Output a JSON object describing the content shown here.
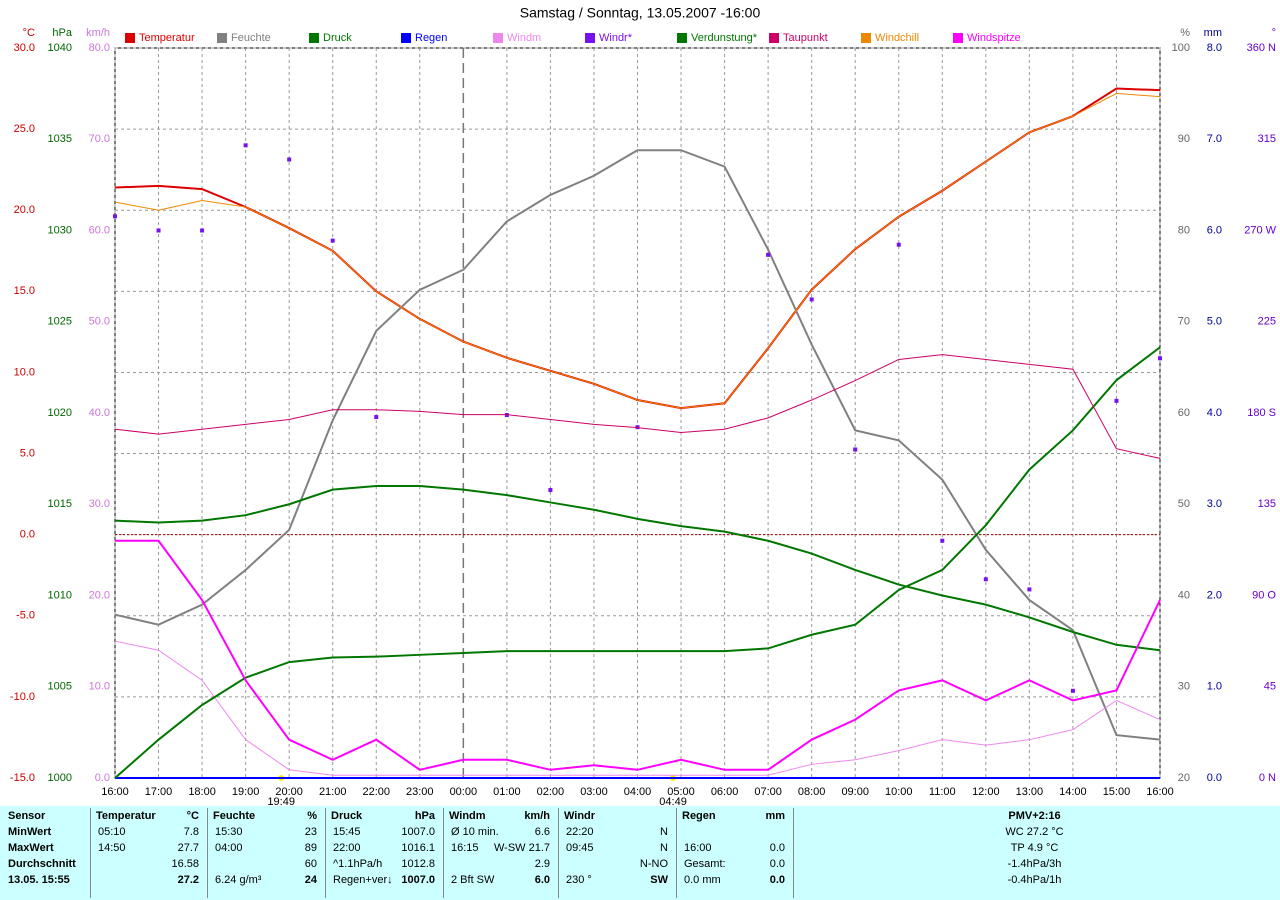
{
  "chart_data": {
    "type": "line",
    "title": "Samstag / Sonntag, 13.05.2007  -16:00",
    "grid": true,
    "zero_line": true,
    "categories": [
      "16:00",
      "17:00",
      "18:00",
      "19:00",
      "20:00",
      "21:00",
      "22:00",
      "23:00",
      "00:00",
      "01:00",
      "02:00",
      "03:00",
      "04:00",
      "05:00",
      "06:00",
      "07:00",
      "08:00",
      "09:00",
      "10:00",
      "11:00",
      "12:00",
      "13:00",
      "14:00",
      "15:00",
      "16:00"
    ],
    "markers": [
      {
        "label": "19:49",
        "color": "#ffee00"
      },
      {
        "label": "04:49",
        "color": "#ffee00"
      }
    ],
    "axes": [
      {
        "unit": "°C",
        "side": "left",
        "color": "#cc0000",
        "lim": [
          -15,
          30
        ],
        "ticks": [
          {
            "value": 30,
            "label": "30.0"
          },
          {
            "value": 25,
            "label": "25.0"
          },
          {
            "value": 20,
            "label": "20.0"
          },
          {
            "value": 15,
            "label": "15.0"
          },
          {
            "value": 10,
            "label": "10.0"
          },
          {
            "value": 5,
            "label": "5.0"
          },
          {
            "value": 0,
            "label": "0.0"
          },
          {
            "value": -5,
            "label": "-5.0"
          },
          {
            "value": -10,
            "label": "-10.0"
          },
          {
            "value": -15,
            "label": "-15.0"
          }
        ]
      },
      {
        "unit": "hPa",
        "side": "left",
        "color": "#006600",
        "lim": [
          1000,
          1040
        ],
        "ticks": [
          1040,
          1035,
          1030,
          1025,
          1020,
          1015,
          1010,
          1005,
          1000
        ]
      },
      {
        "unit": "km/h",
        "side": "left",
        "color": "#cc77dd",
        "lim": [
          0,
          80
        ],
        "ticks": [
          {
            "value": 80,
            "label": "80.0"
          },
          {
            "value": 70,
            "label": "70.0"
          },
          {
            "value": 60,
            "label": "60.0"
          },
          {
            "value": 50,
            "label": "50.0"
          },
          {
            "value": 40,
            "label": "40.0"
          },
          {
            "value": 30,
            "label": "30.0"
          },
          {
            "value": 20,
            "label": "20.0"
          },
          {
            "value": 10,
            "label": "10.0"
          },
          {
            "value": 0,
            "label": "0.0"
          }
        ]
      },
      {
        "unit": "%",
        "side": "right",
        "color": "#666666",
        "lim": [
          20,
          100
        ],
        "ticks": [
          100,
          90,
          80,
          70,
          60,
          50,
          40,
          30,
          20
        ]
      },
      {
        "unit": "mm",
        "side": "right",
        "color": "#000099",
        "lim": [
          0,
          8
        ],
        "ticks": [
          {
            "value": 8,
            "label": "8.0"
          },
          {
            "value": 7,
            "label": "7.0"
          },
          {
            "value": 6,
            "label": "6.0"
          },
          {
            "value": 5,
            "label": "5.0"
          },
          {
            "value": 4,
            "label": "4.0"
          },
          {
            "value": 3,
            "label": "3.0"
          },
          {
            "value": 2,
            "label": "2.0"
          },
          {
            "value": 1,
            "label": "1.0"
          },
          {
            "value": 0,
            "label": "0.0"
          }
        ]
      },
      {
        "unit": "°",
        "side": "right",
        "color": "#6600cc",
        "lim": [
          0,
          360
        ],
        "ticks": [
          {
            "value": 360,
            "label": "360 N"
          },
          315,
          {
            "value": 270,
            "label": "270 W"
          },
          225,
          {
            "value": 180,
            "label": "180 S"
          },
          135,
          {
            "value": 90,
            "label": "90 O"
          },
          45,
          {
            "value": 0,
            "label": "0 N"
          }
        ]
      }
    ],
    "series": [
      {
        "name": "Temperatur",
        "color": "#dd0000",
        "axis": 0,
        "width": 2,
        "values": [
          21.4,
          21.5,
          21.3,
          20.2,
          18.9,
          17.5,
          15.0,
          13.3,
          11.9,
          10.9,
          10.1,
          9.3,
          8.3,
          7.8,
          8.1,
          11.5,
          15.1,
          17.6,
          19.6,
          21.2,
          23.0,
          24.8,
          25.8,
          27.5,
          27.4
        ]
      },
      {
        "name": "Feuchte",
        "color": "#808080",
        "axis": 3,
        "width": 2,
        "values": [
          37.9,
          36.8,
          39,
          42.8,
          47.2,
          59.2,
          69,
          73.5,
          75.7,
          81,
          83.9,
          86,
          88.8,
          88.8,
          87,
          77.9,
          67.5,
          58.1,
          57,
          52.7,
          45,
          39.5,
          36.2,
          24.7,
          24.2
        ]
      },
      {
        "name": "Druck",
        "color": "#007700",
        "axis": 1,
        "width": 2,
        "values": [
          1014.1,
          1014,
          1014.1,
          1014.4,
          1015,
          1015.8,
          1016,
          1016,
          1015.8,
          1015.5,
          1015.1,
          1014.7,
          1014.2,
          1013.8,
          1013.5,
          1013,
          1012.3,
          1011.4,
          1010.6,
          1010,
          1009.5,
          1008.8,
          1008,
          1007.3,
          1007
        ]
      },
      {
        "name": "Regen",
        "color": "#0000ff",
        "axis": 4,
        "width": 2,
        "values": [
          0,
          0,
          0,
          0,
          0,
          0,
          0,
          0,
          0,
          0,
          0,
          0,
          0,
          0,
          0,
          0,
          0,
          0,
          0,
          0,
          0,
          0,
          0,
          0,
          0
        ]
      },
      {
        "name": "Windm",
        "color": "#ee88ee",
        "axis": 2,
        "width": 1,
        "values": [
          15,
          14,
          10.7,
          4.2,
          0.9,
          0.3,
          0.3,
          0.3,
          0.3,
          0.3,
          0.3,
          0.3,
          0.3,
          0.3,
          0.3,
          0.3,
          1.5,
          2,
          3,
          4.2,
          3.6,
          4.2,
          5.3,
          8.5,
          6.4
        ]
      },
      {
        "name": "Windr*",
        "color": "#7711ee",
        "axis": 5,
        "style": "dots",
        "values": [
          277,
          270,
          270,
          312,
          305,
          265,
          178,
          null,
          null,
          179,
          142,
          null,
          173,
          null,
          null,
          258,
          236,
          162,
          263,
          117,
          98,
          93,
          43,
          186,
          207
        ]
      },
      {
        "name": "Verdunstung*",
        "color": "#007700",
        "axis": 4,
        "width": 2,
        "values": [
          0,
          0.42,
          0.8,
          1.1,
          1.27,
          1.32,
          1.33,
          1.35,
          1.37,
          1.39,
          1.39,
          1.39,
          1.39,
          1.39,
          1.39,
          1.42,
          1.57,
          1.68,
          2.06,
          2.28,
          2.77,
          3.38,
          3.81,
          4.36,
          4.72
        ]
      },
      {
        "name": "Taupunkt",
        "color": "#cc0066",
        "axis": 0,
        "width": 1,
        "values": [
          6.5,
          6.2,
          6.5,
          6.8,
          7.1,
          7.7,
          7.7,
          7.6,
          7.4,
          7.4,
          7.1,
          6.8,
          6.6,
          6.3,
          6.5,
          7.2,
          8.3,
          9.5,
          10.8,
          11.1,
          10.8,
          10.5,
          10.2,
          5.3,
          4.7
        ]
      },
      {
        "name": "Windchill",
        "color": "#ee8800",
        "axis": 0,
        "width": 1,
        "values": [
          20.5,
          20.0,
          20.6,
          20.2,
          18.9,
          17.5,
          15.0,
          13.3,
          11.9,
          10.9,
          10.1,
          9.3,
          8.3,
          7.8,
          8.1,
          11.5,
          15.1,
          17.6,
          19.6,
          21.2,
          23.0,
          24.8,
          25.8,
          27.2,
          27.0
        ]
      },
      {
        "name": "Windspitze",
        "color": "#ff00ff",
        "axis": 2,
        "width": 2,
        "values": [
          26,
          26,
          19.5,
          10.7,
          4.2,
          2,
          4.2,
          0.9,
          2,
          2,
          0.9,
          1.4,
          0.9,
          2,
          0.9,
          0.9,
          4.2,
          6.4,
          9.6,
          10.7,
          8.5,
          10.7,
          8.5,
          9.6,
          19.5
        ]
      }
    ]
  },
  "table": {
    "corner": "Sensor",
    "columns": [
      {
        "name": "Temperatur",
        "unit": "°C"
      },
      {
        "name": "Feuchte",
        "unit": "%"
      },
      {
        "name": "Druck",
        "unit": "hPa"
      },
      {
        "name": "Windm",
        "unit": "km/h"
      },
      {
        "name": "Windr"
      },
      {
        "name": "Regen",
        "unit": "mm"
      },
      {
        "name": "PMV+2:16"
      }
    ],
    "rows": [
      {
        "label": "MinWert",
        "cells": [
          {
            "l": "05:10",
            "r": "7.8"
          },
          {
            "l": "15:30",
            "r": "23"
          },
          {
            "l": "15:45",
            "r": "1007.0"
          },
          {
            "l": "Ø 10 min.",
            "r": "6.6"
          },
          {
            "l": "22:20",
            "r": "N"
          },
          {},
          {
            "c": "WC 27.2 °C"
          }
        ]
      },
      {
        "label": "MaxWert",
        "cells": [
          {
            "l": "14:50",
            "r": "27.7"
          },
          {
            "l": "04:00",
            "r": "89"
          },
          {
            "l": "22:00",
            "r": "1016.1"
          },
          {
            "l": "16:15",
            "r": "W-SW 21.7"
          },
          {
            "l": "09:45",
            "r": "N"
          },
          {
            "l": "16:00",
            "r": "0.0"
          },
          {
            "c": "TP 4.9 °C"
          }
        ]
      },
      {
        "label": "Durchschnitt",
        "cells": [
          {
            "r": "16.58"
          },
          {
            "r": "60"
          },
          {
            "l": "^1.1hPa/h",
            "r": "1012.8"
          },
          {
            "r": "2.9"
          },
          {
            "r": "N-NO"
          },
          {
            "l": "Gesamt:",
            "r": "0.0"
          },
          {
            "c": "-1.4hPa/3h"
          }
        ]
      },
      {
        "label": "13.05. 15:55",
        "cells": [
          {
            "r": "27.2"
          },
          {
            "l": "6.24 g/m³",
            "r": "24"
          },
          {
            "l": "Regen+ver↓",
            "r": "1007.0"
          },
          {
            "l": "2 Bft SW",
            "r": "6.0"
          },
          {
            "l": "230 °",
            "r": "SW"
          },
          {
            "l": "0.0 mm",
            "r": "0.0"
          },
          {
            "c": "-0.4hPa/1h"
          }
        ]
      }
    ]
  }
}
